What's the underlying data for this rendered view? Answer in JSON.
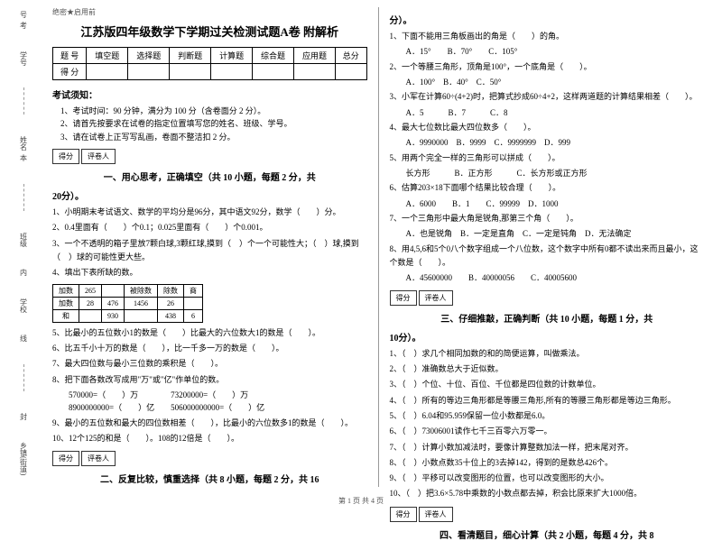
{
  "side": {
    "l1": "号",
    "l2": "学号",
    "l3": "姓名",
    "l4": "班级",
    "l5": "学校",
    "l6": "乡镇(街道)",
    "m1": "考",
    "m2": "本",
    "m3": "内",
    "m4": "线",
    "m5": "封"
  },
  "conf": "绝密★启用前",
  "title": "江苏版四年级数学下学期过关检测试题A卷 附解析",
  "scoreHead": {
    "c1": "题 号",
    "c2": "填空题",
    "c3": "选择题",
    "c4": "判断题",
    "c5": "计算题",
    "c6": "综合题",
    "c7": "应用题",
    "c8": "总分",
    "r2": "得 分"
  },
  "notice": {
    "h": "考试须知：",
    "l1": "1、考试时间：90 分钟，满分为 100 分（含卷面分 2 分）。",
    "l2": "2、请首先按要求在试卷的指定位置填写您的姓名、班级、学号。",
    "l3": "3、请在试卷上正写写乱画，卷面不整洁扣 2 分。"
  },
  "score": {
    "a": "得分",
    "b": "评卷人"
  },
  "sec1": "一、用心思考，正确填空（共 10 小题，每题 2 分，共",
  "sec1b": "20分）。",
  "q1_1": "1、小明期末考试语文、数学的平均分是96分，其中语文92分，数学（　　）分。",
  "q1_2": "2、0.4里面有（　　）个0.1；0.025里面有（　　）个0.001。",
  "q1_3": "3、一个不透明的箱子里放7颗白球,3颗红球,摸到（　）个一个可能性大；（　）球,摸到（　）球的可能性更大些。",
  "q1_4": "4、填出下表所缺的数。",
  "t1": {
    "r1c1": "加数",
    "r1c2": "265",
    "r1c3": "",
    "r1c4": "被除数",
    "r1c5": "除数",
    "r1c6": "商",
    "r2c1": "加数",
    "r2c2": "28",
    "r2c3": "476",
    "r2c4": "1456",
    "r2c5": "26",
    "r2c6": "",
    "r3c1": "和",
    "r3c2": "",
    "r3c3": "930",
    "r3c4": "",
    "r3c5": "438",
    "r3c6": "6"
  },
  "q1_5": "5、比最小的五位数小1的数是（　　）比最大的六位数大1的数是（　　）。",
  "q1_6": "6、比五千小十万的数是（　　），比一千多一万的数是（　　）。",
  "q1_7": "7、最大四位数与最小三位数的乘积是（　　）。",
  "q1_8": "8、把下面各数改写成用\"万\"或\"亿\"作单位的数。",
  "q1_8a": "570000=（　　）万　　　　73200000=（　　）万",
  "q1_8b": "8900000000=（　　）亿　　506000000000=（　　）亿",
  "q1_9": "9、最小的五位数和最大的四位数相差（　　），比最小的六位数多1的数是（　　）。",
  "q1_10": "10、12个125的和是（　　）。108的12倍是（　　）。",
  "sec2": "二、反复比较，慎重选择（共 8 小题，每题 2 分，共 16",
  "sec2b": "分）。",
  "q2_1": "1、下面不能用三角板画出的角是（　　）的角。",
  "q2_1o": "A．15°　　B．70°　　C．105°",
  "q2_2": "2、一个等腰三角形，顶角是100°，一个底角是（　　）。",
  "q2_2o": "A．100°　B．40°　C．50°",
  "q2_3": "3、小军在计算60÷(4+2)时，把算式抄成60÷4+2，这样两道题的计算结果相差（　　）。",
  "q2_3o": "A．5　　　B．7　　　C．8",
  "q2_4": "4、最大七位数比最大四位数多（　　）。",
  "q2_4o": "A．9990000　B．9999　C．9999999　D．999",
  "q2_5": "5、用两个完全一样的三角形可以拼成（　　）。",
  "q2_5o": "长方形　　　B．正方形　　　C．长方形或正方形",
  "q2_6": "6、估算203×18下面哪个结果比较合理（　　）。",
  "q2_6o": "A．6000　　B．1　　C．99999　D．1000",
  "q2_7": "7、一个三角形中最大角是锐角,那第三个角（　　）。",
  "q2_7o": "A．也是锐角　B．一定是直角　C．一定是钝角　D．无法确定",
  "q2_8": "8、用4,5,6和5个0八个数字组成一个八位数，这个数字中所有0都不读出来而且最小，这个数是（　　）。",
  "q2_8o": "A．45600000　　B．40000056　　C．40005600",
  "sec3": "三、仔细推敲，正确判断（共 10 小题，每题 1 分，共",
  "sec3b": "10分）。",
  "q3_1": "1、（　）求几个相同加数的和的简便运算，叫做乘法。",
  "q3_2": "2、（　）准确数总大于近似数。",
  "q3_3": "3、（　）个位、十位、百位、千位都是四位数的计数单位。",
  "q3_4": "4、（　）所有的等边三角形都是等腰三角形,所有的等腰三角形都是等边三角形。",
  "q3_5": "5、（　）6.04和95.959保留一位小数都是6.0。",
  "q3_6": "6、（　）73006001读作七千三百零六万零一。",
  "q3_7": "7、（　）计算小数加减法时，要像计算整数加法一样，把末尾对齐。",
  "q3_8": "8、（　）小数点数35十位上的3去掉142，得到的是数总426个。",
  "q3_9": "9、（　）平移可以改变图形的位置，也可以改变图形的大小。",
  "q3_10": "10、（　）把3.6×5.78中乘数的小数点都去掉，积会比原来扩大1000倍。",
  "sec4": "四、看清题目，细心计算（共 2 小题，每题 4 分，共 8",
  "footer": "第 1 页 共 4 页"
}
